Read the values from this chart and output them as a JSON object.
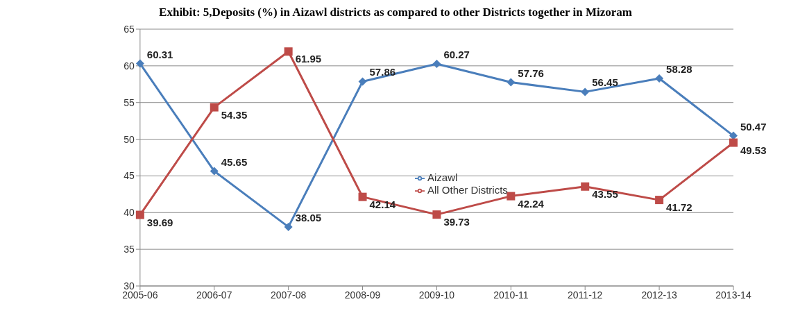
{
  "chart_data": {
    "type": "line",
    "title": "Exhibit: 5,Deposits (%) in Aizawl districts as compared to other Districts together in Mizoram",
    "categories": [
      "2005-06",
      "2006-07",
      "2007-08",
      "2008-09",
      "2009-10",
      "2010-11",
      "2011-12",
      "2012-13",
      "2013-14"
    ],
    "series": [
      {
        "name": "Aizawl",
        "color": "#4a7ebb",
        "marker": "diamond",
        "values": [
          60.31,
          45.65,
          38.05,
          57.86,
          60.27,
          57.76,
          56.45,
          58.28,
          50.47
        ]
      },
      {
        "name": "All Other Districts",
        "color": "#be4b48",
        "marker": "square",
        "values": [
          39.69,
          54.35,
          61.95,
          42.14,
          39.73,
          42.24,
          43.55,
          41.72,
          49.53
        ]
      }
    ],
    "ylim": [
      30,
      65
    ],
    "yticks": [
      30,
      35,
      40,
      45,
      50,
      55,
      60,
      65
    ],
    "grid": "y",
    "legend": "center",
    "data_labels": true
  }
}
